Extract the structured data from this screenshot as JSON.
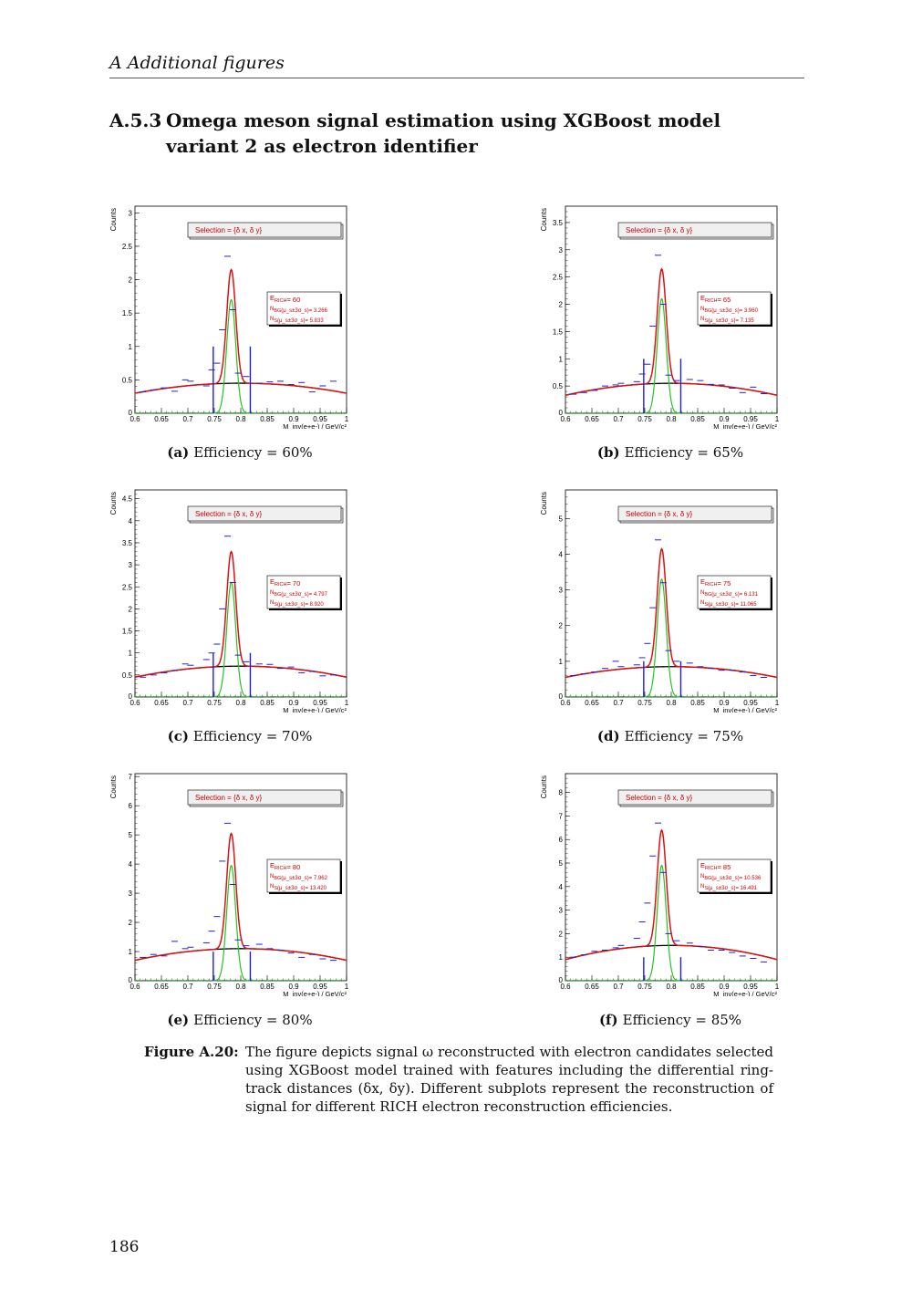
{
  "running_head": "A  Additional figures",
  "section": {
    "number": "A.5.3",
    "title": "Omega meson signal estimation using XGBoost model variant 2 as electron identifier"
  },
  "figure": {
    "label": "Figure A.20:",
    "caption": "The figure depicts signal ω reconstructed with electron candidates selected using XGBoost model trained with features including the differential ring-track distances (δx, δy). Different subplots represent the reconstruction of signal for different RICH electron reconstruction efficiencies."
  },
  "page_number": "186",
  "chart_data": [
    {
      "type": "line",
      "panel": "(a)",
      "caption": "Efficiency = 60%",
      "ylabel": "Counts",
      "xlabel": "M_inv(e+e-) / GeV/c²",
      "xlim": [
        0.6,
        1.0
      ],
      "ylim": [
        0,
        3.1
      ],
      "yticks": [
        "0.5",
        "1",
        "1.5",
        "2",
        "2.5",
        "3"
      ],
      "ytick_values": [
        0.5,
        1,
        1.5,
        2,
        2.5,
        3
      ],
      "xticks": [
        "0.6",
        "0.65",
        "0.7",
        "0.75",
        "0.8",
        "0.85",
        "0.9",
        "0.95",
        "1"
      ],
      "legend": "Selection = {δ x, δ y}",
      "stats": {
        "e_rich": "E_RICH= 60",
        "n_bg": "N_BG(μ_s±3σ_s)= 3.266",
        "n_s": "N_S(μ_s±3σ_s)= 5.833"
      },
      "signal": {
        "mean": 0.782,
        "sigma": 0.0085,
        "amp": 1.7
      },
      "background": {
        "peak": 0.45,
        "edge": 0.3
      },
      "window": [
        0.748,
        0.818
      ],
      "window_height": 1.0,
      "data_points": [
        [
          0.615,
          0.32
        ],
        [
          0.635,
          0.35
        ],
        [
          0.655,
          0.38
        ],
        [
          0.675,
          0.33
        ],
        [
          0.695,
          0.5
        ],
        [
          0.705,
          0.48
        ],
        [
          0.735,
          0.41
        ],
        [
          0.745,
          0.65
        ],
        [
          0.755,
          0.75
        ],
        [
          0.765,
          1.25
        ],
        [
          0.775,
          2.35
        ],
        [
          0.785,
          1.55
        ],
        [
          0.795,
          0.6
        ],
        [
          0.81,
          0.55
        ],
        [
          0.835,
          0.45
        ],
        [
          0.855,
          0.47
        ],
        [
          0.875,
          0.48
        ],
        [
          0.895,
          0.43
        ],
        [
          0.915,
          0.46
        ],
        [
          0.935,
          0.32
        ],
        [
          0.955,
          0.41
        ],
        [
          0.975,
          0.48
        ]
      ]
    },
    {
      "type": "line",
      "panel": "(b)",
      "caption": "Efficiency = 65%",
      "ylabel": "Counts",
      "xlabel": "M_inv(e+e-) / GeV/c²",
      "xlim": [
        0.6,
        1.0
      ],
      "ylim": [
        0,
        3.8
      ],
      "yticks": [
        "0.5",
        "1",
        "1.5",
        "2",
        "2.5",
        "3",
        "3.5"
      ],
      "ytick_values": [
        0.5,
        1,
        1.5,
        2,
        2.5,
        3,
        3.5
      ],
      "xticks": [
        "0.6",
        "0.65",
        "0.7",
        "0.75",
        "0.8",
        "0.85",
        "0.9",
        "0.95",
        "1"
      ],
      "legend": "Selection = {δ x, δ y}",
      "stats": {
        "e_rich": "E_RICH= 65",
        "n_bg": "N_BG(μ_s±3σ_s)= 3.960",
        "n_s": "N_S(μ_s±3σ_s)= 7.135"
      },
      "signal": {
        "mean": 0.782,
        "sigma": 0.0085,
        "amp": 2.1
      },
      "background": {
        "peak": 0.55,
        "edge": 0.33
      },
      "window": [
        0.748,
        0.818
      ],
      "window_height": 1.0,
      "data_points": [
        [
          0.615,
          0.35
        ],
        [
          0.635,
          0.38
        ],
        [
          0.655,
          0.42
        ],
        [
          0.675,
          0.5
        ],
        [
          0.695,
          0.52
        ],
        [
          0.705,
          0.55
        ],
        [
          0.735,
          0.58
        ],
        [
          0.745,
          0.72
        ],
        [
          0.755,
          0.9
        ],
        [
          0.765,
          1.6
        ],
        [
          0.775,
          2.9
        ],
        [
          0.785,
          2.0
        ],
        [
          0.795,
          0.7
        ],
        [
          0.81,
          0.6
        ],
        [
          0.835,
          0.62
        ],
        [
          0.855,
          0.6
        ],
        [
          0.875,
          0.53
        ],
        [
          0.895,
          0.52
        ],
        [
          0.915,
          0.46
        ],
        [
          0.935,
          0.38
        ],
        [
          0.955,
          0.48
        ],
        [
          0.975,
          0.36
        ]
      ]
    },
    {
      "type": "line",
      "panel": "(c)",
      "caption": "Efficiency = 70%",
      "ylabel": "Counts",
      "xlabel": "M_inv(e+e-) / GeV/c²",
      "xlim": [
        0.6,
        1.0
      ],
      "ylim": [
        0,
        4.7
      ],
      "yticks": [
        "0.5",
        "1",
        "1.5",
        "2",
        "2.5",
        "3",
        "3.5",
        "4",
        "4.5"
      ],
      "ytick_values": [
        0.5,
        1,
        1.5,
        2,
        2.5,
        3,
        3.5,
        4,
        4.5
      ],
      "xticks": [
        "0.6",
        "0.65",
        "0.7",
        "0.75",
        "0.8",
        "0.85",
        "0.9",
        "0.95",
        "1"
      ],
      "legend": "Selection = {δ x, δ y}",
      "stats": {
        "e_rich": "E_RICH= 70",
        "n_bg": "N_BG(μ_s±3σ_s)= 4.797",
        "n_s": "N_S(μ_s±3σ_s)= 8.920"
      },
      "signal": {
        "mean": 0.782,
        "sigma": 0.0085,
        "amp": 2.6
      },
      "background": {
        "peak": 0.7,
        "edge": 0.45
      },
      "window": [
        0.748,
        0.818
      ],
      "window_height": 1.0,
      "data_points": [
        [
          0.615,
          0.45
        ],
        [
          0.635,
          0.5
        ],
        [
          0.655,
          0.55
        ],
        [
          0.675,
          0.6
        ],
        [
          0.695,
          0.75
        ],
        [
          0.705,
          0.72
        ],
        [
          0.735,
          0.85
        ],
        [
          0.745,
          1.0
        ],
        [
          0.755,
          1.2
        ],
        [
          0.765,
          2.0
        ],
        [
          0.775,
          3.65
        ],
        [
          0.785,
          2.6
        ],
        [
          0.795,
          0.95
        ],
        [
          0.81,
          0.8
        ],
        [
          0.835,
          0.75
        ],
        [
          0.855,
          0.74
        ],
        [
          0.875,
          0.65
        ],
        [
          0.895,
          0.68
        ],
        [
          0.915,
          0.55
        ],
        [
          0.935,
          0.58
        ],
        [
          0.955,
          0.48
        ],
        [
          0.975,
          0.5
        ]
      ]
    },
    {
      "type": "line",
      "panel": "(d)",
      "caption": "Efficiency = 75%",
      "ylabel": "Counts",
      "xlabel": "M_inv(e+e-) / GeV/c²",
      "xlim": [
        0.6,
        1.0
      ],
      "ylim": [
        0,
        5.8
      ],
      "yticks": [
        "1",
        "2",
        "3",
        "4",
        "5"
      ],
      "ytick_values": [
        1,
        2,
        3,
        4,
        5
      ],
      "xticks": [
        "0.6",
        "0.65",
        "0.7",
        "0.75",
        "0.8",
        "0.85",
        "0.9",
        "0.95",
        "1"
      ],
      "legend": "Selection = {δ x, δ y}",
      "stats": {
        "e_rich": "E_RICH= 75",
        "n_bg": "N_BG(μ_s±3σ_s)= 6.131",
        "n_s": "N_S(μ_s±3σ_s)= 11.065"
      },
      "signal": {
        "mean": 0.782,
        "sigma": 0.0085,
        "amp": 3.3
      },
      "background": {
        "peak": 0.85,
        "edge": 0.55
      },
      "window": [
        0.748,
        0.818
      ],
      "window_height": 1.0,
      "data_points": [
        [
          0.615,
          0.6
        ],
        [
          0.635,
          0.65
        ],
        [
          0.655,
          0.7
        ],
        [
          0.675,
          0.8
        ],
        [
          0.695,
          1.0
        ],
        [
          0.705,
          0.85
        ],
        [
          0.735,
          0.9
        ],
        [
          0.745,
          1.1
        ],
        [
          0.755,
          1.5
        ],
        [
          0.765,
          2.5
        ],
        [
          0.775,
          4.4
        ],
        [
          0.785,
          3.2
        ],
        [
          0.795,
          1.3
        ],
        [
          0.81,
          1.0
        ],
        [
          0.835,
          0.95
        ],
        [
          0.855,
          0.85
        ],
        [
          0.875,
          0.8
        ],
        [
          0.895,
          0.75
        ],
        [
          0.915,
          0.75
        ],
        [
          0.935,
          0.7
        ],
        [
          0.955,
          0.6
        ],
        [
          0.975,
          0.55
        ]
      ]
    },
    {
      "type": "line",
      "panel": "(e)",
      "caption": "Efficiency = 80%",
      "ylabel": "Counts",
      "xlabel": "M_inv(e+e-) / GeV/c²",
      "xlim": [
        0.6,
        1.0
      ],
      "ylim": [
        0,
        7.1
      ],
      "yticks": [
        "1",
        "2",
        "3",
        "4",
        "5",
        "6",
        "7"
      ],
      "ytick_values": [
        1,
        2,
        3,
        4,
        5,
        6,
        7
      ],
      "xticks": [
        "0.6",
        "0.65",
        "0.7",
        "0.75",
        "0.8",
        "0.85",
        "0.9",
        "0.95",
        "1"
      ],
      "legend": "Selection = {δ x, δ y}",
      "stats": {
        "e_rich": "E_RICH= 80",
        "n_bg": "N_BG(μ_s±3σ_s)= 7.962",
        "n_s": "N_S(μ_s±3σ_s)= 13.420"
      },
      "signal": {
        "mean": 0.782,
        "sigma": 0.0085,
        "amp": 3.95
      },
      "background": {
        "peak": 1.1,
        "edge": 0.7
      },
      "window": [
        0.748,
        0.818
      ],
      "window_height": 1.0,
      "data_points": [
        [
          0.615,
          0.8
        ],
        [
          0.635,
          0.9
        ],
        [
          0.655,
          0.85
        ],
        [
          0.675,
          1.35
        ],
        [
          0.695,
          1.1
        ],
        [
          0.705,
          1.15
        ],
        [
          0.735,
          1.3
        ],
        [
          0.745,
          1.7
        ],
        [
          0.755,
          2.2
        ],
        [
          0.765,
          4.1
        ],
        [
          0.775,
          5.4
        ],
        [
          0.785,
          3.3
        ],
        [
          0.795,
          1.4
        ],
        [
          0.81,
          1.2
        ],
        [
          0.835,
          1.25
        ],
        [
          0.855,
          1.1
        ],
        [
          0.875,
          1.05
        ],
        [
          0.895,
          0.95
        ],
        [
          0.915,
          0.8
        ],
        [
          0.935,
          0.9
        ],
        [
          0.955,
          0.75
        ],
        [
          0.975,
          0.7
        ]
      ]
    },
    {
      "type": "line",
      "panel": "(f)",
      "caption": "Efficiency = 85%",
      "ylabel": "Counts",
      "xlabel": "M_inv(e+e-) / GeV/c²",
      "xlim": [
        0.6,
        1.0
      ],
      "ylim": [
        0,
        8.8
      ],
      "yticks": [
        "1",
        "2",
        "3",
        "4",
        "5",
        "6",
        "7",
        "8"
      ],
      "ytick_values": [
        1,
        2,
        3,
        4,
        5,
        6,
        7,
        8
      ],
      "xticks": [
        "0.6",
        "0.65",
        "0.7",
        "0.75",
        "0.8",
        "0.85",
        "0.9",
        "0.95",
        "1"
      ],
      "legend": "Selection = {δ x, δ y}",
      "stats": {
        "e_rich": "E_RICH= 85",
        "n_bg": "N_BG(μ_s±3σ_s)= 10.536",
        "n_s": "N_S(μ_s±3σ_s)= 16.491"
      },
      "signal": {
        "mean": 0.782,
        "sigma": 0.0085,
        "amp": 4.9
      },
      "background": {
        "peak": 1.5,
        "edge": 0.9
      },
      "window": [
        0.748,
        0.818
      ],
      "window_height": 1.0,
      "data_points": [
        [
          0.615,
          1.0
        ],
        [
          0.635,
          1.1
        ],
        [
          0.655,
          1.25
        ],
        [
          0.675,
          1.3
        ],
        [
          0.695,
          1.4
        ],
        [
          0.705,
          1.5
        ],
        [
          0.735,
          1.8
        ],
        [
          0.745,
          2.5
        ],
        [
          0.755,
          3.3
        ],
        [
          0.765,
          5.3
        ],
        [
          0.775,
          6.7
        ],
        [
          0.785,
          4.6
        ],
        [
          0.795,
          2.0
        ],
        [
          0.81,
          1.7
        ],
        [
          0.835,
          1.6
        ],
        [
          0.855,
          1.45
        ],
        [
          0.875,
          1.3
        ],
        [
          0.895,
          1.3
        ],
        [
          0.915,
          1.2
        ],
        [
          0.935,
          1.05
        ],
        [
          0.955,
          0.95
        ],
        [
          0.975,
          0.8
        ]
      ]
    }
  ]
}
